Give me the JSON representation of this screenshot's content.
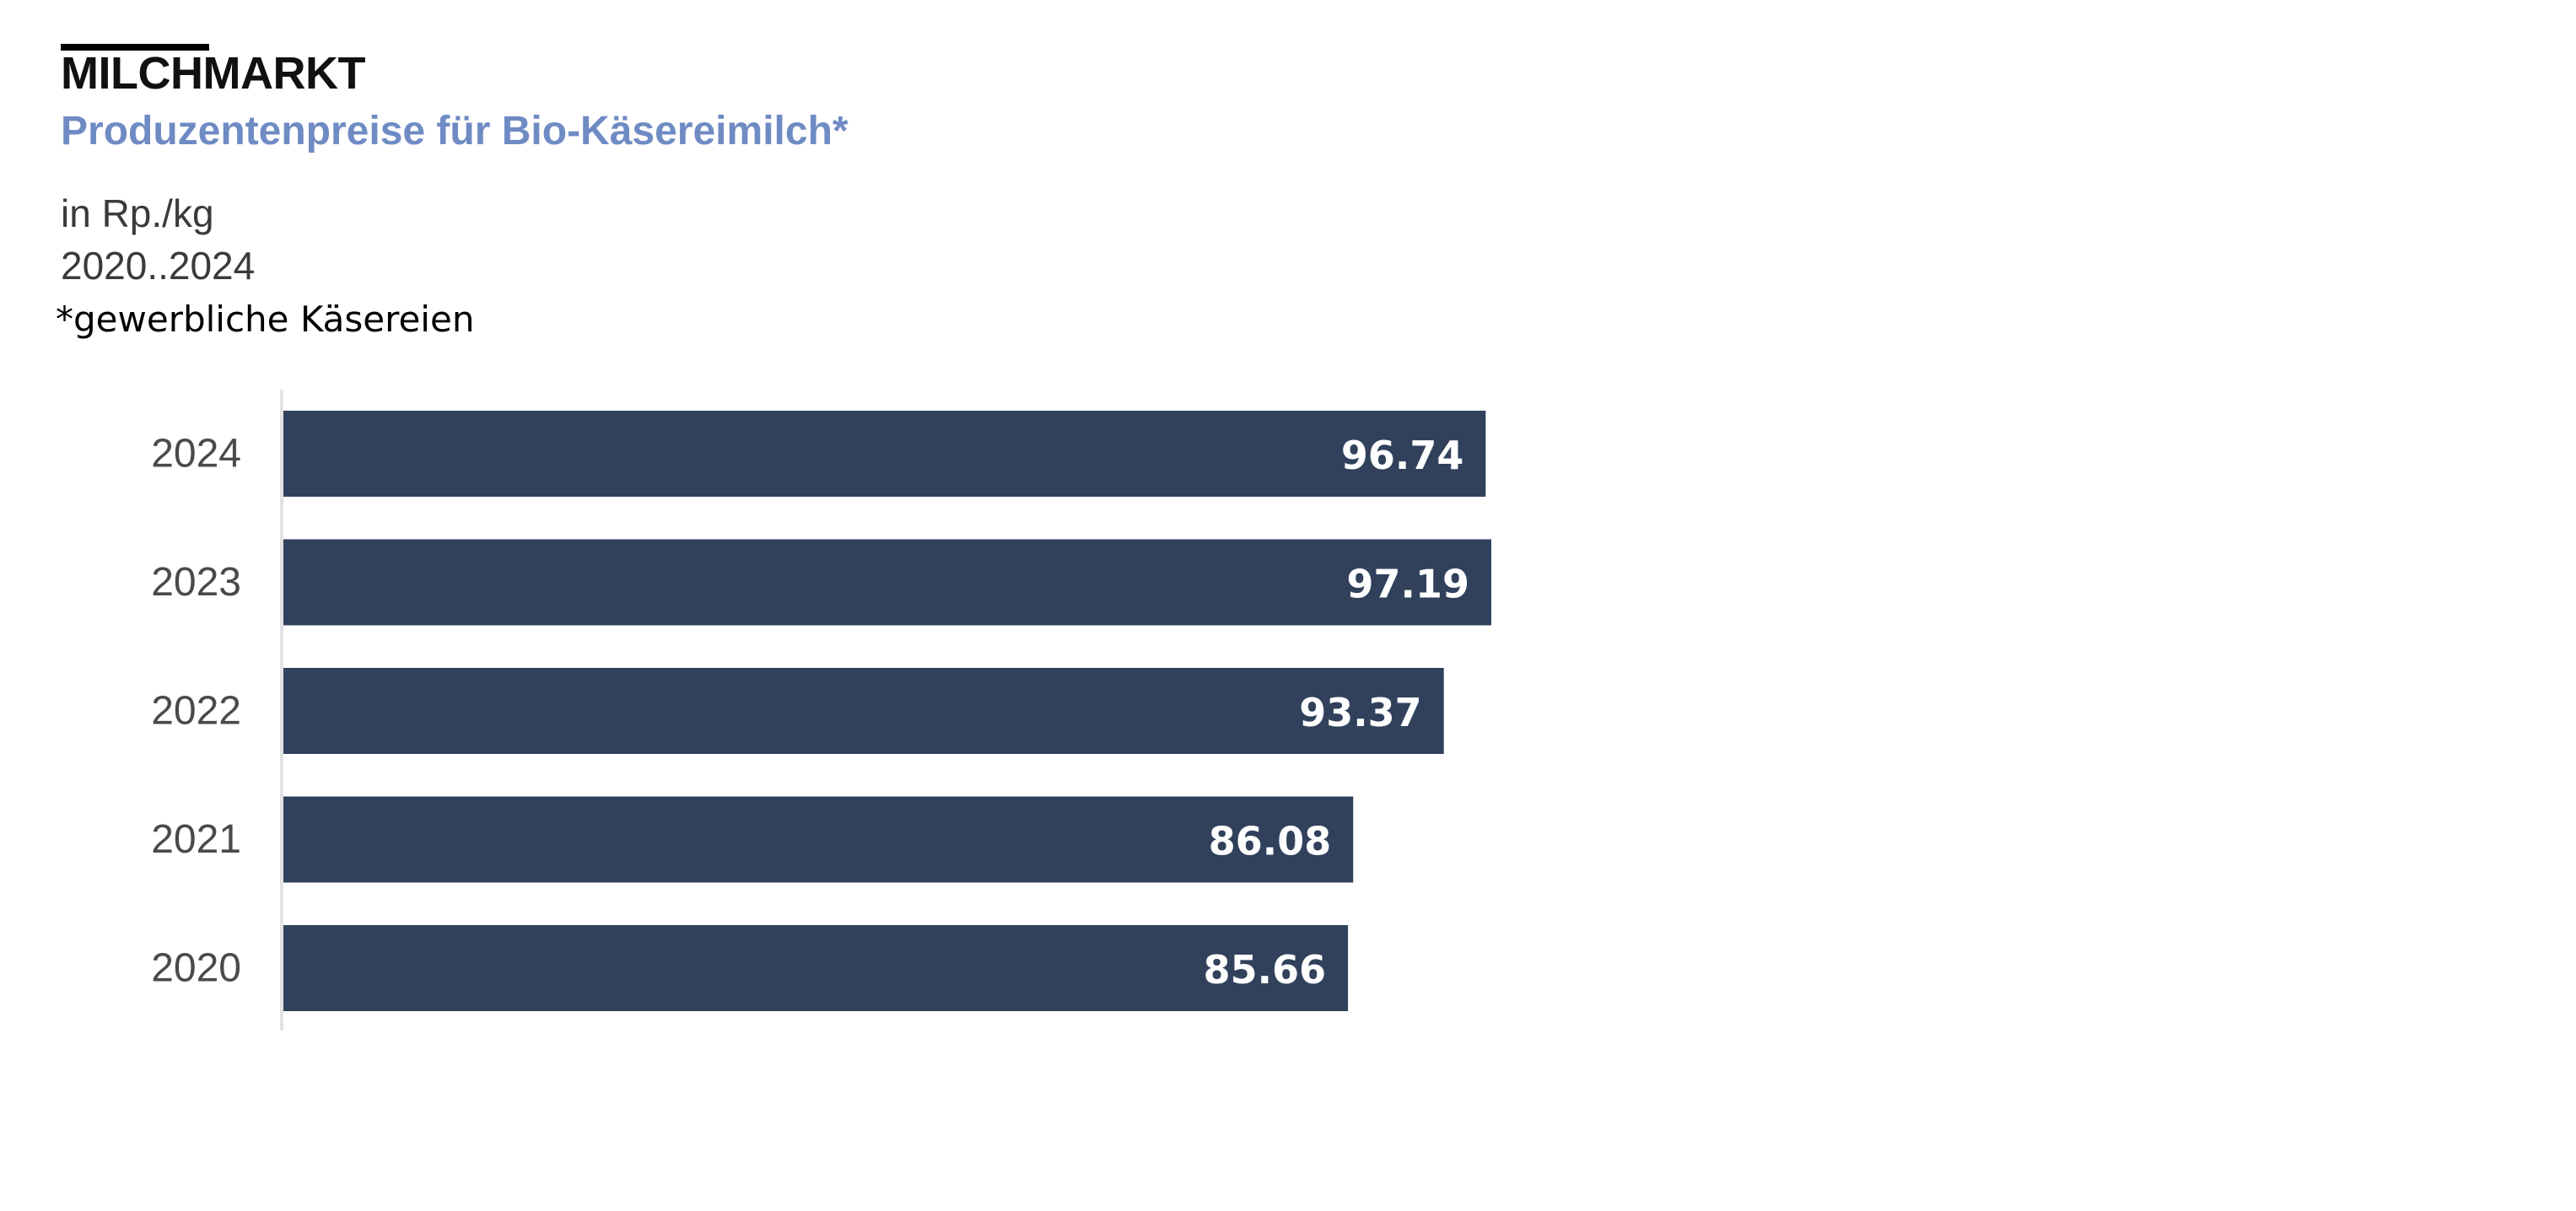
{
  "header": {
    "brand": "MILCHMARKT",
    "subtitle": "Produzentenpreise für Bio-Käsereimilch*",
    "unit": "in Rp./kg",
    "period": "2020..2024",
    "footnote": "*gewerbliche Käsereien"
  },
  "colors": {
    "bar": "#31415c",
    "subtitle": "#6f8bc4",
    "axis": "#e3e3e3"
  },
  "chart_data": {
    "type": "bar",
    "orientation": "horizontal",
    "categories": [
      "2024",
      "2023",
      "2022",
      "2021",
      "2020"
    ],
    "values": [
      96.74,
      97.19,
      93.37,
      86.08,
      85.66
    ],
    "value_labels": [
      "96.74",
      "97.19",
      "93.37",
      "86.08",
      "85.66"
    ],
    "xlim": [
      0,
      97.19
    ],
    "grid": false,
    "legend": "none"
  }
}
